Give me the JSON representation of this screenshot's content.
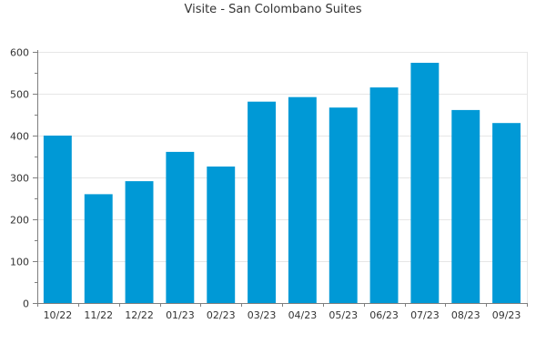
{
  "chart_data": {
    "type": "bar",
    "title": "Visite - San Colombano Suites",
    "xlabel": "",
    "ylabel": "",
    "categories": [
      "10/22",
      "11/22",
      "12/22",
      "01/23",
      "02/23",
      "03/23",
      "04/23",
      "05/23",
      "06/23",
      "07/23",
      "08/23",
      "09/23"
    ],
    "values": [
      400,
      260,
      291,
      361,
      326,
      481,
      492,
      467,
      515,
      574,
      461,
      430
    ],
    "ylim": [
      0,
      600
    ],
    "yticks": [
      0,
      100,
      200,
      300,
      400,
      500,
      600
    ],
    "grid": true,
    "legend": "none",
    "bar_color": "#0099d6",
    "grid_color": "#e6e6e6",
    "axis_color": "#7f7f7f",
    "text_color": "#333333"
  }
}
